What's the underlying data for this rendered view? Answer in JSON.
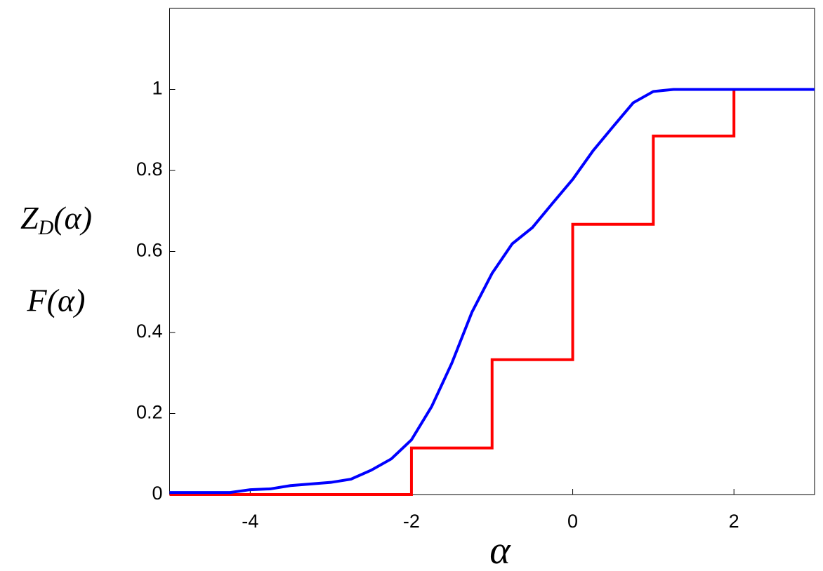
{
  "chart_data": {
    "type": "line",
    "xlabel": "α",
    "ylabels": [
      "Z_D(α)",
      "F(α)"
    ],
    "xlim": [
      -5,
      3
    ],
    "ylim": [
      0,
      1.2
    ],
    "xticks": [
      -4,
      -2,
      0,
      2
    ],
    "yticks": [
      0,
      0.2,
      0.4,
      0.6,
      0.8,
      1
    ],
    "series": [
      {
        "color": "#0000ff",
        "x": [
          -5,
          -4.25,
          -4,
          -3.75,
          -3.5,
          -3,
          -2.75,
          -2.5,
          -2.25,
          -2,
          -1.75,
          -1.5,
          -1.25,
          -1,
          -0.75,
          -0.5,
          -0.25,
          0,
          0.25,
          0.5,
          0.75,
          1,
          1.25,
          3
        ],
        "values": [
          0.005,
          0.005,
          0.012,
          0.014,
          0.022,
          0.03,
          0.038,
          0.06,
          0.088,
          0.135,
          0.217,
          0.324,
          0.45,
          0.546,
          0.619,
          0.659,
          0.719,
          0.778,
          0.848,
          0.908,
          0.967,
          0.995,
          1,
          1
        ]
      },
      {
        "color": "#ff0000",
        "x": [
          -5,
          -2,
          -2,
          -1,
          -1,
          0,
          0,
          1,
          1,
          2,
          2
        ],
        "values": [
          0,
          0,
          0.115,
          0.115,
          0.333,
          0.333,
          0.667,
          0.667,
          0.885,
          0.885,
          1
        ]
      }
    ]
  }
}
